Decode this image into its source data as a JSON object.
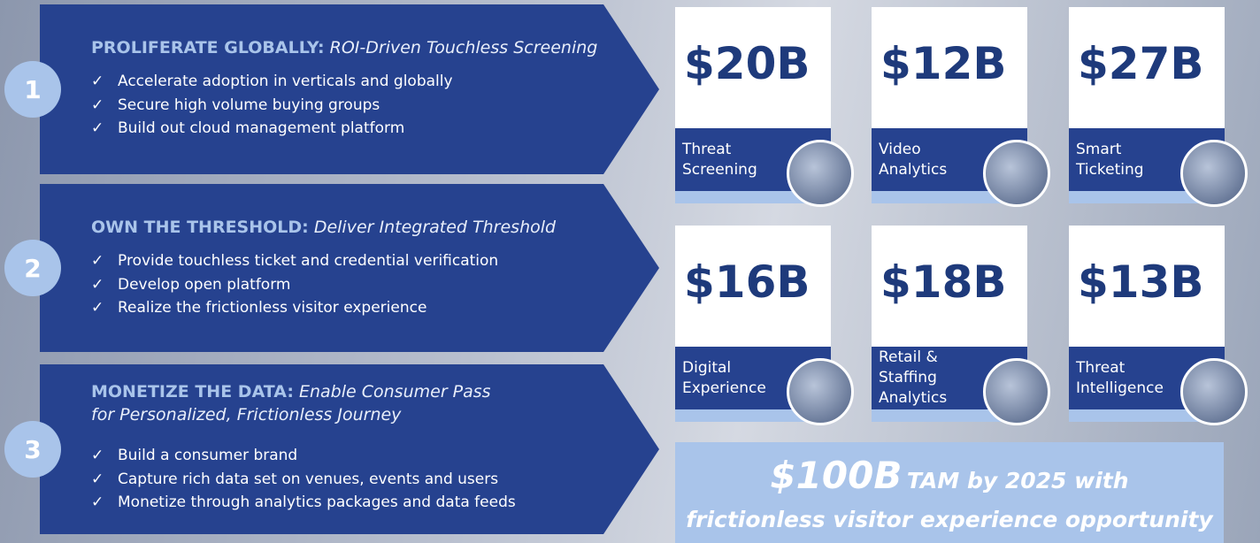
{
  "strategies": [
    {
      "number": "1",
      "label": "PROLIFERATE GLOBALLY:",
      "subtitle": "ROI-Driven Touchless Screening",
      "bullets": [
        "Accelerate adoption in verticals and globally",
        "Secure high volume buying groups",
        "Build out cloud management platform"
      ]
    },
    {
      "number": "2",
      "label": "OWN THE THRESHOLD:",
      "subtitle": "Deliver Integrated Threshold",
      "bullets": [
        "Provide touchless ticket and credential verification",
        "Develop open platform",
        "Realize the frictionless visitor experience"
      ]
    },
    {
      "number": "3",
      "label": "MONETIZE THE DATA:",
      "subtitle": "Enable Consumer Pass for Personalized, Frictionless Journey",
      "bullets": [
        "Build a consumer brand",
        "Capture rich data set on venues, events and users",
        "Monetize through analytics packages and data feeds"
      ]
    }
  ],
  "markets": [
    {
      "amount": "$20B",
      "label": "Threat Screening"
    },
    {
      "amount": "$12B",
      "label": "Video Analytics"
    },
    {
      "amount": "$27B",
      "label": "Smart Ticketing"
    },
    {
      "amount": "$16B",
      "label": "Digital Experience"
    },
    {
      "amount": "$18B",
      "label": "Retail & Staffing Analytics"
    },
    {
      "amount": "$13B",
      "label": "Threat Intelligence"
    }
  ],
  "tam": {
    "amount": "$100B",
    "text": "TAM by 2025 with",
    "note": "frictionless visitor experience opportunity"
  }
}
